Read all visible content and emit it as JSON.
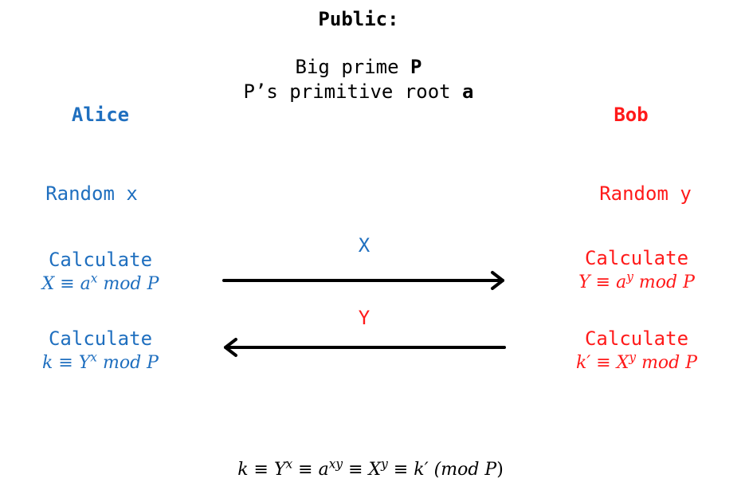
{
  "public": {
    "title": "Public:",
    "prime_prefix": "Big prime ",
    "prime_symbol": "P",
    "root_prefix": "P’s primitive root ",
    "root_symbol": "a"
  },
  "alice": {
    "name": "Alice",
    "random": "Random x",
    "calc1_label": "Calculate",
    "calc1_lhs": "X ≡ a",
    "calc1_exp": "x",
    "calc1_rhs": " mod P",
    "calc2_label": "Calculate",
    "calc2_lhs": "k ≡ Y",
    "calc2_exp": "x",
    "calc2_rhs": " mod P"
  },
  "bob": {
    "name": "Bob",
    "random": "Random y",
    "calc1_label": "Calculate",
    "calc1_lhs": "Y ≡ a",
    "calc1_exp": "y",
    "calc1_rhs": " mod P",
    "calc2_label": "Calculate",
    "calc2_lhs": "k′ ≡ X",
    "calc2_exp": "y",
    "calc2_rhs": " mod P"
  },
  "exchange": {
    "to_bob_label": "X",
    "to_alice_label": "Y"
  },
  "conclusion": {
    "p1": "k ≡ Y",
    "e1": "x",
    "p2": " ≡ a",
    "e2": "xy",
    "p3": " ≡ X",
    "e3": "y",
    "p4": " ≡ k′ (",
    "p5": "mod P",
    "p6": ")"
  },
  "colors": {
    "alice": "#1f6fbf",
    "bob": "#ff1a1a",
    "public": "#000000"
  }
}
